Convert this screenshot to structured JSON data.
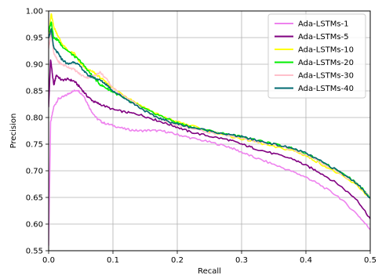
{
  "chart_data": {
    "type": "line",
    "title": "",
    "xlabel": "Recall",
    "ylabel": "Precision",
    "xlim": [
      0.0,
      0.5
    ],
    "ylim": [
      0.55,
      1.0
    ],
    "grid": true,
    "legend_position": "top-right",
    "xticks": [
      0.0,
      0.1,
      0.2,
      0.3,
      0.4,
      0.5
    ],
    "xtick_labels": [
      "0.0",
      "0.1",
      "0.2",
      "0.3",
      "0.4",
      "0.5"
    ],
    "yticks": [
      0.55,
      0.6,
      0.65,
      0.7,
      0.75,
      0.8,
      0.85,
      0.9,
      0.95,
      1.0
    ],
    "ytick_labels": [
      "0.55",
      "0.60",
      "0.65",
      "0.70",
      "0.75",
      "0.80",
      "0.85",
      "0.90",
      "0.95",
      "1.00"
    ],
    "series": [
      {
        "name": "Ada-LSTMs-1",
        "color": "#ee82ee",
        "x": [
          0.0,
          0.003,
          0.008,
          0.015,
          0.025,
          0.035,
          0.045,
          0.055,
          0.065,
          0.075,
          0.085,
          0.1,
          0.12,
          0.14,
          0.16,
          0.18,
          0.2,
          0.22,
          0.25,
          0.28,
          0.3,
          0.32,
          0.35,
          0.38,
          0.4,
          0.42,
          0.45,
          0.48,
          0.5
        ],
        "y": [
          0.56,
          0.79,
          0.82,
          0.835,
          0.84,
          0.848,
          0.852,
          0.84,
          0.815,
          0.798,
          0.79,
          0.785,
          0.778,
          0.775,
          0.776,
          0.774,
          0.768,
          0.762,
          0.754,
          0.745,
          0.735,
          0.725,
          0.712,
          0.698,
          0.688,
          0.675,
          0.652,
          0.618,
          0.59
        ]
      },
      {
        "name": "Ada-LSTMs-5",
        "color": "#800080",
        "x": [
          0.0,
          0.003,
          0.008,
          0.012,
          0.02,
          0.03,
          0.04,
          0.05,
          0.06,
          0.07,
          0.08,
          0.1,
          0.12,
          0.14,
          0.16,
          0.18,
          0.2,
          0.22,
          0.25,
          0.28,
          0.3,
          0.32,
          0.35,
          0.38,
          0.4,
          0.42,
          0.45,
          0.48,
          0.5
        ],
        "y": [
          0.82,
          0.91,
          0.86,
          0.88,
          0.87,
          0.872,
          0.868,
          0.855,
          0.84,
          0.83,
          0.825,
          0.815,
          0.81,
          0.806,
          0.798,
          0.79,
          0.782,
          0.773,
          0.765,
          0.758,
          0.75,
          0.742,
          0.732,
          0.722,
          0.71,
          0.698,
          0.675,
          0.645,
          0.61
        ]
      },
      {
        "name": "Ada-LSTMs-10",
        "color": "#ffff00",
        "x": [
          0.0,
          0.004,
          0.008,
          0.012,
          0.02,
          0.03,
          0.04,
          0.05,
          0.06,
          0.07,
          0.08,
          0.09,
          0.1,
          0.12,
          0.14,
          0.16,
          0.18,
          0.2,
          0.22,
          0.25,
          0.28,
          0.3,
          0.32,
          0.35,
          0.38,
          0.4,
          0.42,
          0.45,
          0.48,
          0.5
        ],
        "y": [
          0.95,
          0.995,
          0.97,
          0.96,
          0.94,
          0.925,
          0.92,
          0.9,
          0.89,
          0.885,
          0.875,
          0.865,
          0.855,
          0.84,
          0.825,
          0.812,
          0.8,
          0.792,
          0.785,
          0.775,
          0.765,
          0.76,
          0.755,
          0.745,
          0.738,
          0.728,
          0.715,
          0.695,
          0.672,
          0.648
        ]
      },
      {
        "name": "Ada-LSTMs-20",
        "color": "#00ee00",
        "x": [
          0.0,
          0.004,
          0.008,
          0.015,
          0.02,
          0.03,
          0.04,
          0.05,
          0.06,
          0.07,
          0.08,
          0.09,
          0.1,
          0.12,
          0.14,
          0.16,
          0.18,
          0.2,
          0.22,
          0.25,
          0.28,
          0.3,
          0.32,
          0.35,
          0.38,
          0.4,
          0.42,
          0.45,
          0.48,
          0.5
        ],
        "y": [
          0.96,
          0.98,
          0.95,
          0.945,
          0.935,
          0.925,
          0.915,
          0.905,
          0.89,
          0.875,
          0.862,
          0.855,
          0.848,
          0.835,
          0.822,
          0.81,
          0.8,
          0.79,
          0.783,
          0.775,
          0.768,
          0.764,
          0.758,
          0.75,
          0.742,
          0.732,
          0.72,
          0.7,
          0.677,
          0.65
        ]
      },
      {
        "name": "Ada-LSTMs-30",
        "color": "#ffc0cb",
        "x": [
          0.0,
          0.004,
          0.008,
          0.015,
          0.02,
          0.03,
          0.04,
          0.05,
          0.06,
          0.07,
          0.08,
          0.09,
          0.1,
          0.12,
          0.14,
          0.16,
          0.18,
          0.2,
          0.22,
          0.25,
          0.28,
          0.3,
          0.32,
          0.35,
          0.38,
          0.4,
          0.42,
          0.45,
          0.48,
          0.5
        ],
        "y": [
          0.93,
          0.96,
          0.92,
          0.905,
          0.9,
          0.895,
          0.89,
          0.88,
          0.875,
          0.878,
          0.885,
          0.872,
          0.855,
          0.838,
          0.822,
          0.805,
          0.795,
          0.785,
          0.78,
          0.772,
          0.766,
          0.762,
          0.756,
          0.748,
          0.74,
          0.73,
          0.718,
          0.698,
          0.675,
          0.649
        ]
      },
      {
        "name": "Ada-LSTMs-40",
        "color": "#006a70",
        "x": [
          0.0,
          0.004,
          0.008,
          0.015,
          0.02,
          0.03,
          0.04,
          0.05,
          0.06,
          0.07,
          0.08,
          0.09,
          0.1,
          0.12,
          0.14,
          0.16,
          0.18,
          0.2,
          0.22,
          0.25,
          0.28,
          0.3,
          0.32,
          0.35,
          0.38,
          0.4,
          0.42,
          0.45,
          0.48,
          0.5
        ],
        "y": [
          0.95,
          0.965,
          0.93,
          0.92,
          0.91,
          0.9,
          0.905,
          0.895,
          0.88,
          0.875,
          0.87,
          0.862,
          0.85,
          0.835,
          0.82,
          0.805,
          0.795,
          0.788,
          0.782,
          0.775,
          0.768,
          0.764,
          0.758,
          0.75,
          0.742,
          0.733,
          0.72,
          0.7,
          0.676,
          0.649
        ]
      }
    ]
  }
}
